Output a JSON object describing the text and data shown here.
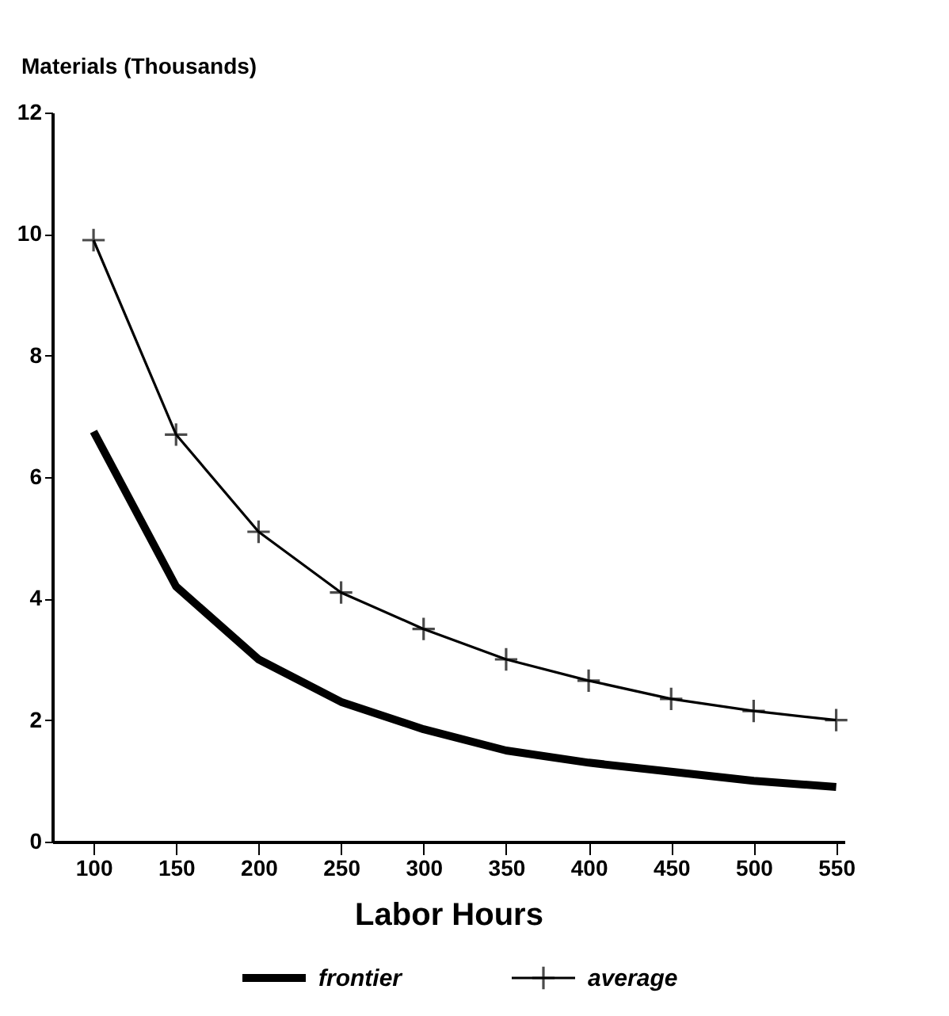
{
  "chart_data": {
    "type": "line",
    "xlabel": "Labor Hours",
    "ylabel": "Materials (Thousands)",
    "x": [
      100,
      150,
      200,
      250,
      300,
      350,
      400,
      450,
      500,
      550
    ],
    "series": [
      {
        "name": "frontier",
        "color": "#000000",
        "marker": "none",
        "values": [
          6.75,
          4.2,
          3.0,
          2.3,
          1.85,
          1.5,
          1.3,
          1.15,
          1.0,
          0.9
        ]
      },
      {
        "name": "average",
        "color": "#000000",
        "marker": "cross",
        "values": [
          9.9,
          6.7,
          5.1,
          4.1,
          3.5,
          3.0,
          2.65,
          2.35,
          2.15,
          2.0
        ]
      }
    ],
    "xlim": [
      75,
      555
    ],
    "xticks": [
      100,
      150,
      200,
      250,
      300,
      350,
      400,
      450,
      500,
      550
    ],
    "ylim": [
      0,
      12
    ],
    "yticks": [
      0,
      2,
      4,
      6,
      8,
      10,
      12
    ],
    "grid": false,
    "legend": "bottom",
    "line_style": "solid"
  }
}
